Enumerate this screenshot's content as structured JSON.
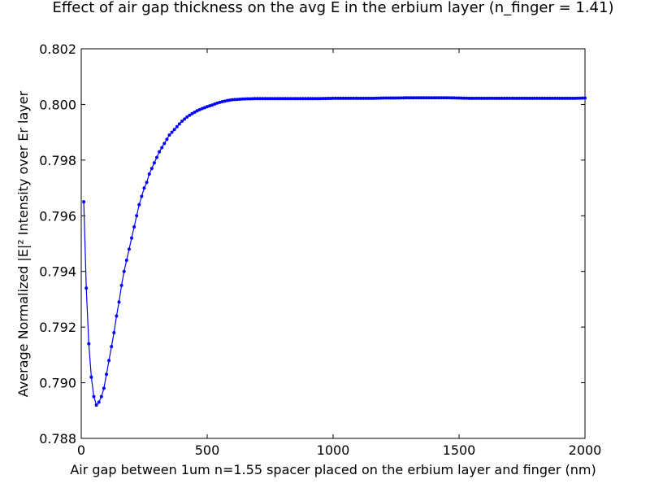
{
  "chart_data": {
    "type": "line",
    "title": "Effect of air gap thickness on the avg E in the erbium layer (n_finger = 1.41)",
    "xlabel": "Air gap between 1um n=1.55 spacer placed on the erbium layer and finger (nm)",
    "ylabel": "Average Normalized |E|² Intensity over Er layer",
    "xlim": [
      0,
      2000
    ],
    "ylim": [
      0.788,
      0.802
    ],
    "xticks": [
      0,
      500,
      1000,
      1500,
      2000
    ],
    "xtick_labels": [
      "0",
      "500",
      "1000",
      "1500",
      "2000"
    ],
    "yticks": [
      0.788,
      0.79,
      0.792,
      0.794,
      0.796,
      0.798,
      0.8,
      0.802
    ],
    "ytick_labels": [
      "0.788",
      "0.790",
      "0.792",
      "0.794",
      "0.796",
      "0.798",
      "0.800",
      "0.802"
    ],
    "grid": false,
    "line_color": "#0000ff",
    "series": [
      {
        "name": "",
        "x": [
          10,
          20,
          30,
          40,
          50,
          60,
          70,
          80,
          90,
          100,
          110,
          120,
          130,
          140,
          150,
          160,
          170,
          180,
          190,
          200,
          210,
          220,
          230,
          240,
          250,
          260,
          270,
          280,
          290,
          300,
          310,
          320,
          330,
          340,
          350,
          360,
          370,
          380,
          390,
          400,
          420,
          440,
          460,
          480,
          500,
          520,
          540,
          560,
          580,
          600,
          650,
          700,
          750,
          800,
          850,
          900,
          950,
          1000,
          1050,
          1100,
          1150,
          1200,
          1250,
          1300,
          1350,
          1400,
          1450,
          1500,
          1550,
          1600,
          1650,
          1700,
          1750,
          1800,
          1850,
          1900,
          1950,
          2000
        ],
        "y": [
          0.7965,
          0.7934,
          0.7914,
          0.7902,
          0.7895,
          0.7892,
          0.7893,
          0.7895,
          0.7898,
          0.7903,
          0.7908,
          0.7913,
          0.7918,
          0.7924,
          0.7929,
          0.7935,
          0.794,
          0.7944,
          0.7948,
          0.7952,
          0.7956,
          0.796,
          0.7964,
          0.7967,
          0.797,
          0.7972,
          0.7975,
          0.7977,
          0.7979,
          0.7981,
          0.7983,
          0.79845,
          0.7986,
          0.79875,
          0.7989,
          0.799,
          0.7991,
          0.7992,
          0.7993,
          0.7994,
          0.79955,
          0.79967,
          0.79977,
          0.79985,
          0.79992,
          0.79998,
          0.80005,
          0.8001,
          0.80014,
          0.80017,
          0.8002,
          0.80021,
          0.80021,
          0.80021,
          0.80021,
          0.80021,
          0.80021,
          0.80022,
          0.80022,
          0.80022,
          0.80022,
          0.80023,
          0.80023,
          0.80024,
          0.80024,
          0.80024,
          0.80024,
          0.80023,
          0.80022,
          0.80022,
          0.80022,
          0.80022,
          0.80022,
          0.80022,
          0.80022,
          0.80022,
          0.80022,
          0.80023
        ]
      }
    ]
  }
}
